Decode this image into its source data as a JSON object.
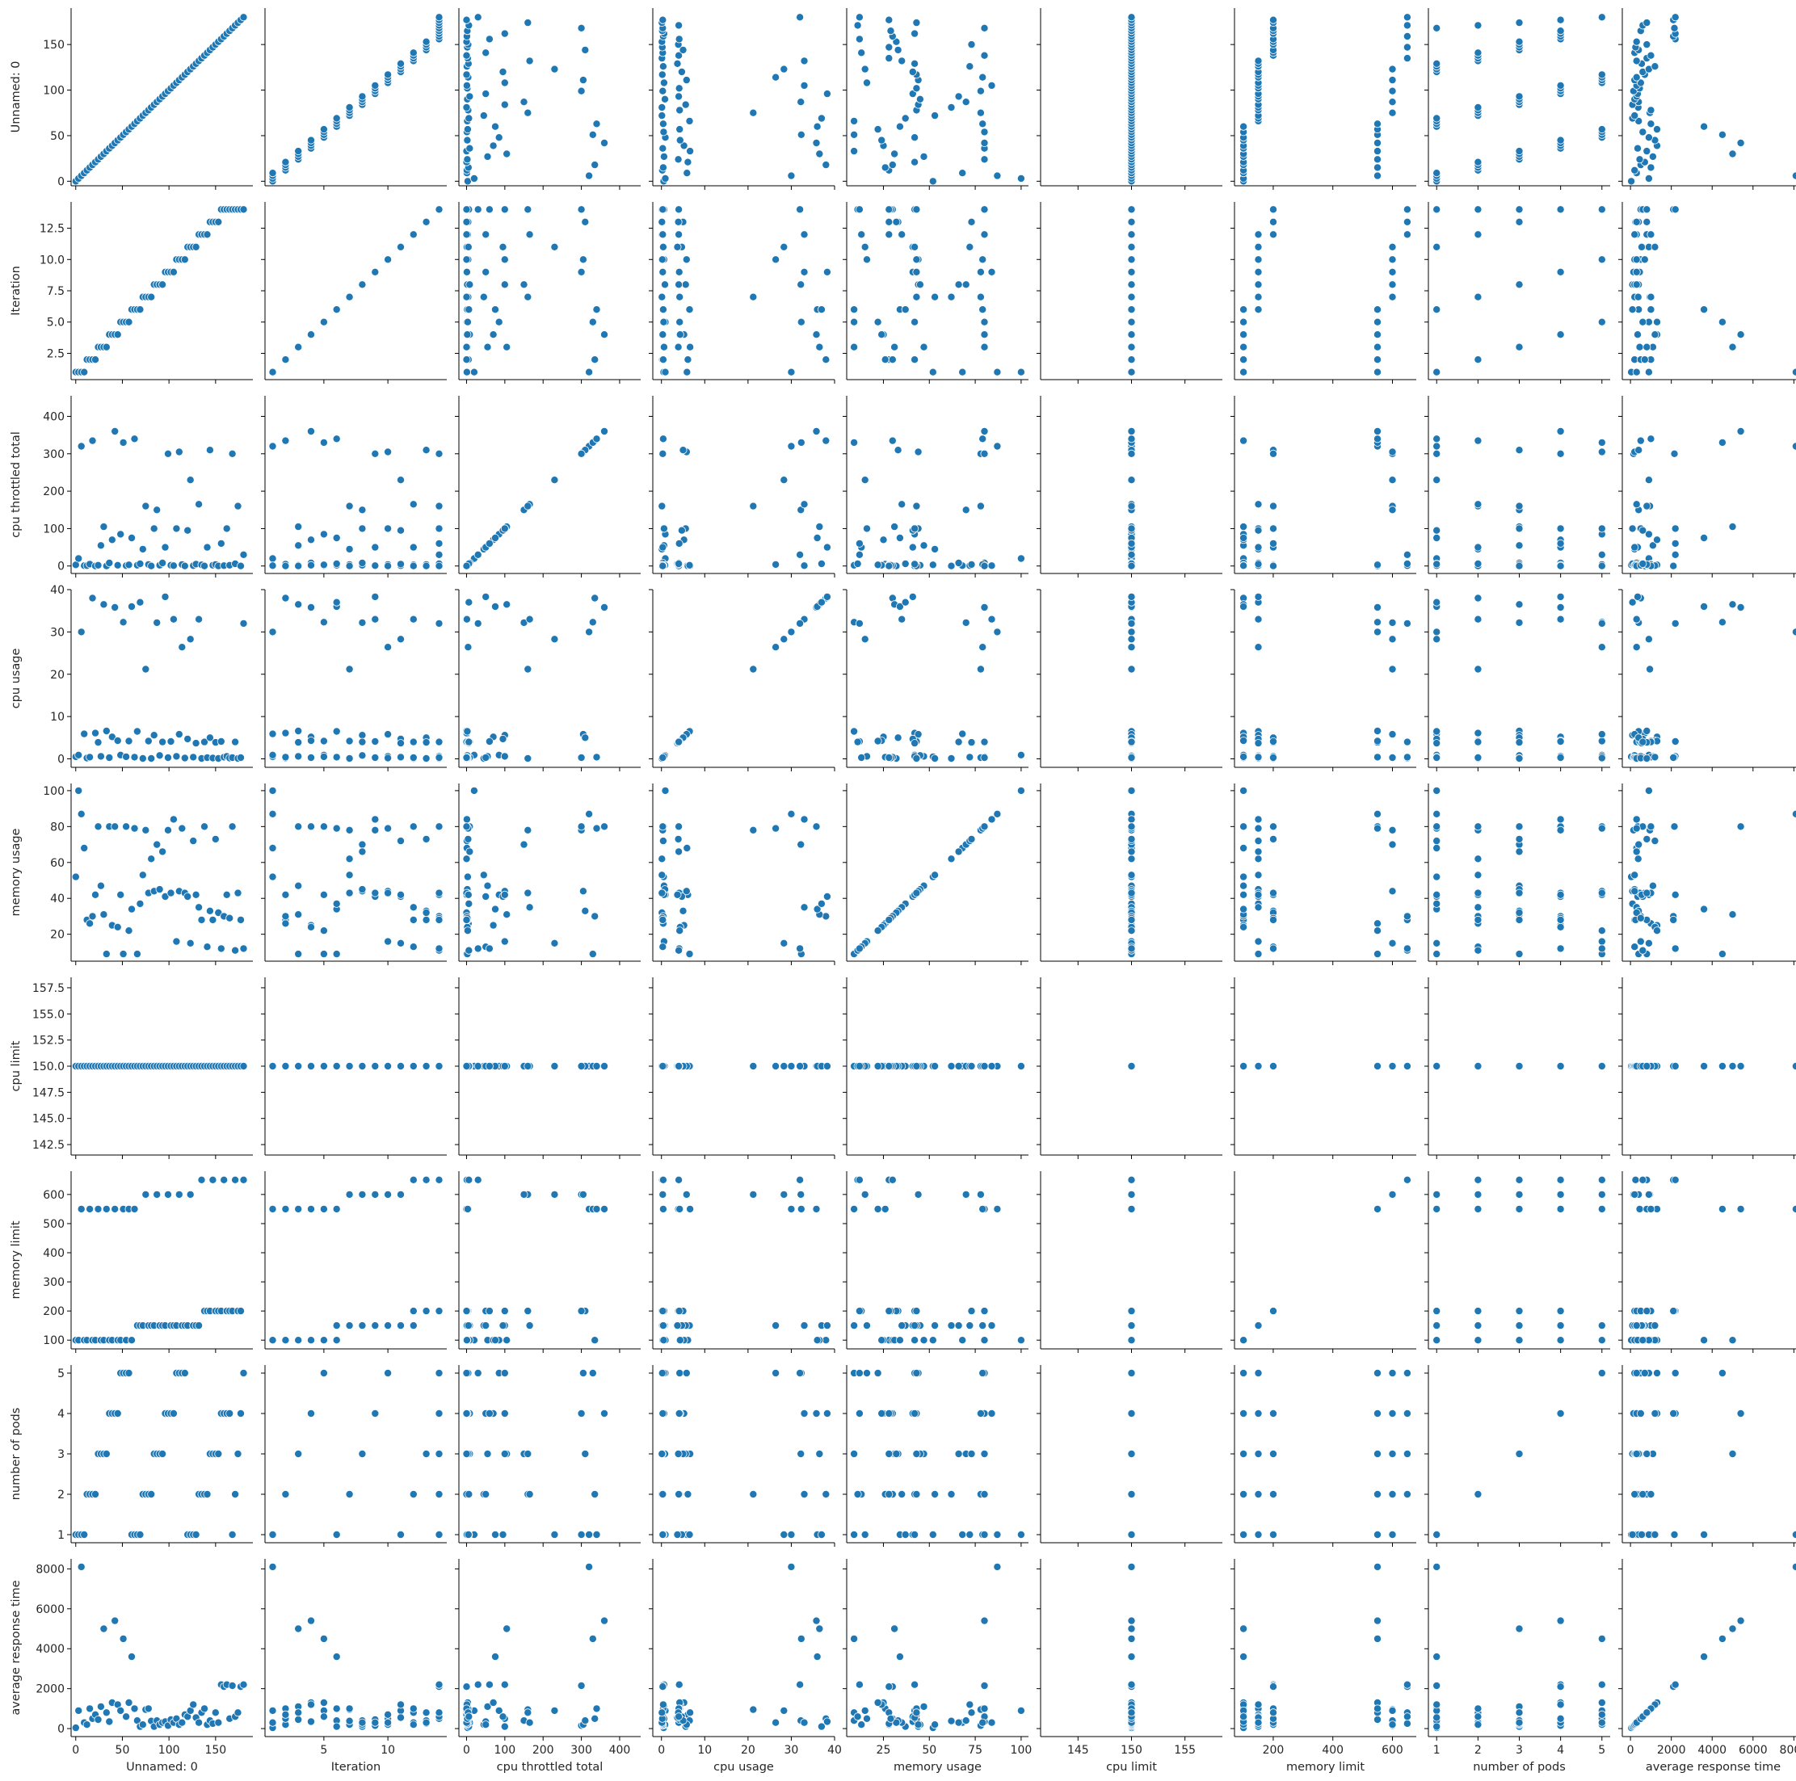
{
  "chart_data": {
    "type": "scatter",
    "subtype": "pairplot",
    "marker_color": "#1f77b4",
    "marker_edge_color": "#ffffff",
    "variables": [
      {
        "label": "Unnamed: 0",
        "range": [
          -5,
          190
        ],
        "ticks": [
          0,
          50,
          100,
          150
        ]
      },
      {
        "label": "Iteration",
        "range": [
          0.4,
          14.6
        ],
        "ticks": [
          2.5,
          5.0,
          7.5,
          10.0,
          12.5
        ],
        "xticks": [
          5,
          10
        ]
      },
      {
        "label": "cpu throttled total",
        "range": [
          -20,
          455
        ],
        "ticks": [
          0,
          100,
          200,
          300,
          400
        ]
      },
      {
        "label": "cpu usage",
        "range": [
          -2,
          40
        ],
        "ticks": [
          0,
          10,
          20,
          30,
          40
        ]
      },
      {
        "label": "memory usage",
        "range": [
          5,
          104
        ],
        "ticks": [
          20,
          40,
          60,
          80,
          100
        ],
        "xticks": [
          25,
          50,
          75,
          100
        ]
      },
      {
        "label": "cpu limit",
        "range": [
          141.5,
          158.5
        ],
        "ticks": [
          142.5,
          145.0,
          147.5,
          150.0,
          152.5,
          155.0,
          157.5
        ],
        "xticks": [
          145,
          150,
          155
        ]
      },
      {
        "label": "memory limit",
        "range": [
          70,
          680
        ],
        "ticks": [
          100,
          200,
          300,
          400,
          500,
          600
        ],
        "xticks": [
          200,
          400,
          600
        ]
      },
      {
        "label": "number of pods",
        "range": [
          0.8,
          5.2
        ],
        "ticks": [
          1,
          2,
          3,
          4,
          5
        ]
      },
      {
        "label": "average response time",
        "range": [
          -400,
          8500
        ],
        "ticks": [
          0,
          2000,
          4000,
          6000,
          8000
        ]
      }
    ],
    "columns": {
      "Unnamed: 0": [
        0,
        3,
        6,
        9,
        12,
        15,
        18,
        21,
        24,
        27,
        30,
        33,
        36,
        39,
        42,
        45,
        48,
        51,
        54,
        57,
        60,
        63,
        66,
        69,
        72,
        75,
        78,
        81,
        84,
        87,
        90,
        93,
        96,
        99,
        102,
        105,
        108,
        111,
        114,
        117,
        120,
        123,
        126,
        129,
        132,
        135,
        138,
        141,
        144,
        147,
        150,
        153,
        156,
        159,
        162,
        165,
        168,
        171,
        174,
        177,
        180
      ],
      "Iteration": [
        1,
        1,
        1,
        1,
        2,
        2,
        2,
        2,
        3,
        3,
        3,
        3,
        4,
        4,
        4,
        4,
        5,
        5,
        5,
        5,
        6,
        6,
        6,
        6,
        7,
        7,
        7,
        7,
        8,
        8,
        8,
        8,
        9,
        9,
        9,
        9,
        10,
        10,
        10,
        10,
        11,
        11,
        11,
        11,
        12,
        12,
        12,
        12,
        13,
        13,
        13,
        13,
        14,
        14,
        14,
        14,
        14,
        14,
        14,
        14,
        14
      ],
      "cpu throttled total": [
        3,
        20,
        320,
        1,
        1,
        5,
        335,
        0,
        2,
        55,
        105,
        0,
        8,
        70,
        360,
        2,
        85,
        330,
        1,
        3,
        75,
        340,
        2,
        6,
        45,
        160,
        4,
        0,
        100,
        150,
        2,
        8,
        50,
        300,
        2,
        1,
        100,
        305,
        4,
        0,
        95,
        230,
        1,
        5,
        165,
        3,
        0,
        50,
        310,
        2,
        4,
        0,
        60,
        1,
        100,
        2,
        300,
        6,
        160,
        0,
        30
      ],
      "cpu usage": [
        0.5,
        0.9,
        30,
        5.9,
        0.2,
        0.4,
        38,
        6.1,
        3.9,
        0.6,
        36.5,
        6.6,
        0.3,
        5.2,
        35.8,
        4.3,
        0.9,
        32.3,
        0.5,
        4.2,
        36,
        0.4,
        6.5,
        37,
        0.1,
        21.2,
        4.2,
        0.1,
        5.6,
        32.2,
        0.8,
        4,
        38.3,
        0.3,
        4.1,
        33,
        0.6,
        5.8,
        26.4,
        0.2,
        4.7,
        28.3,
        0.4,
        3.7,
        33,
        0.1,
        4,
        0.3,
        5,
        0.2,
        3.9,
        0.1,
        4.1,
        0.4,
        0.6,
        0.2,
        0.3,
        4,
        0.1,
        0.3,
        32
      ],
      "memory usage": [
        52,
        100,
        87,
        68,
        28,
        26,
        30,
        42,
        80,
        47,
        31,
        9,
        80,
        25,
        80,
        24,
        42,
        9,
        80,
        22,
        34,
        79,
        9,
        37,
        53,
        78,
        43,
        62,
        44,
        70,
        45,
        66,
        41,
        78,
        43,
        84,
        16,
        44,
        79,
        43,
        41,
        15,
        72,
        42,
        35,
        28,
        80,
        13,
        33,
        28,
        73,
        32,
        12,
        30,
        42,
        29,
        80,
        11,
        43,
        28,
        12
      ],
      "cpu limit": [
        150,
        150,
        150,
        150,
        150,
        150,
        150,
        150,
        150,
        150,
        150,
        150,
        150,
        150,
        150,
        150,
        150,
        150,
        150,
        150,
        150,
        150,
        150,
        150,
        150,
        150,
        150,
        150,
        150,
        150,
        150,
        150,
        150,
        150,
        150,
        150,
        150,
        150,
        150,
        150,
        150,
        150,
        150,
        150,
        150,
        150,
        150,
        150,
        150,
        150,
        150,
        150,
        150,
        150,
        150,
        150,
        150,
        150,
        150,
        150,
        150
      ],
      "memory limit": [
        100,
        100,
        550,
        100,
        100,
        550,
        100,
        100,
        550,
        100,
        100,
        550,
        100,
        100,
        550,
        100,
        100,
        550,
        100,
        550,
        100,
        550,
        150,
        150,
        150,
        600,
        150,
        150,
        150,
        600,
        150,
        150,
        150,
        600,
        150,
        150,
        150,
        600,
        150,
        150,
        150,
        600,
        150,
        150,
        150,
        650,
        200,
        200,
        200,
        650,
        200,
        200,
        200,
        650,
        200,
        200,
        200,
        650,
        200,
        200,
        650
      ],
      "number of pods": [
        1,
        1,
        1,
        1,
        2,
        2,
        2,
        2,
        3,
        3,
        3,
        3,
        4,
        4,
        4,
        4,
        5,
        5,
        5,
        5,
        1,
        1,
        1,
        1,
        2,
        2,
        2,
        2,
        3,
        3,
        3,
        3,
        4,
        4,
        4,
        4,
        5,
        5,
        5,
        5,
        1,
        1,
        1,
        1,
        2,
        2,
        2,
        2,
        3,
        3,
        3,
        3,
        4,
        4,
        4,
        4,
        1,
        2,
        3,
        4,
        5
      ],
      "average response time": [
        40,
        900,
        8100,
        300,
        200,
        1000,
        500,
        700,
        450,
        1100,
        5000,
        800,
        350,
        1300,
        5400,
        1200,
        900,
        4500,
        600,
        1300,
        3600,
        1000,
        400,
        100,
        200,
        950,
        1000,
        380,
        100,
        400,
        200,
        300,
        350,
        150,
        450,
        300,
        500,
        200,
        300,
        700,
        600,
        900,
        1200,
        550,
        300,
        800,
        1000,
        200,
        400,
        250,
        800,
        300,
        2200,
        2100,
        2200,
        500,
        2150,
        600,
        800,
        2100,
        2200
      ]
    }
  }
}
